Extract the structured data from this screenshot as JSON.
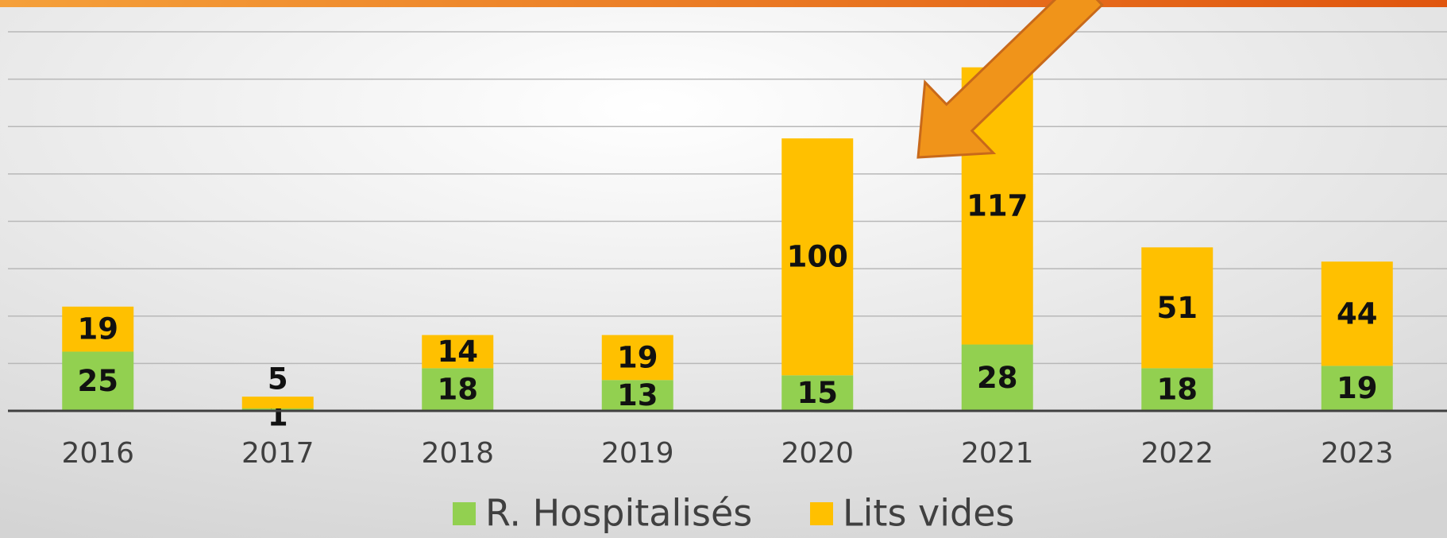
{
  "chart_data": {
    "type": "stacked_bar",
    "categories": [
      "2016",
      "2017",
      "2018",
      "2019",
      "2020",
      "2021",
      "2022",
      "2023"
    ],
    "series": [
      {
        "name": "R. Hospitalisés",
        "color": "#92d050",
        "values": [
          25,
          1,
          18,
          13,
          15,
          28,
          18,
          19
        ]
      },
      {
        "name": "Lits vides",
        "color": "#ffc000",
        "values": [
          19,
          5,
          14,
          19,
          100,
          117,
          51,
          44
        ]
      }
    ],
    "ylim": [
      0,
      160
    ],
    "yticks": [
      0,
      20,
      40,
      60,
      80,
      100,
      120,
      140,
      160
    ],
    "grid": true,
    "legend": "bottom"
  }
}
